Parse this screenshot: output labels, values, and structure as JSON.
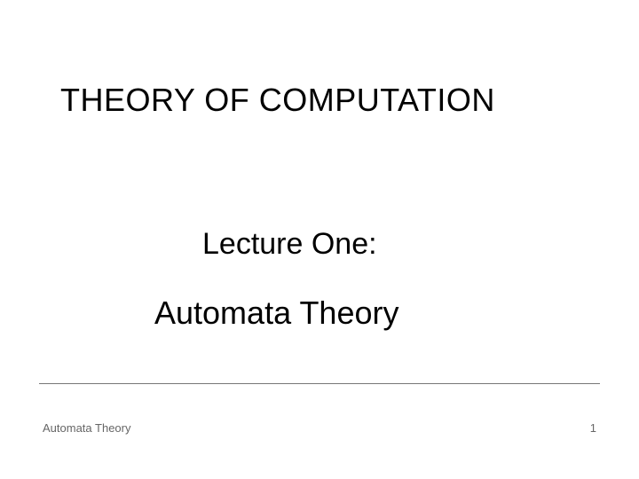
{
  "slide": {
    "title": "THEORY OF COMPUTATION",
    "subtitle_line1": "Lecture One:",
    "subtitle_line2": "Automata Theory",
    "footer_left": "Automata Theory",
    "page_number": "1",
    "background_color": "#ffffff",
    "text_color": "#000000",
    "footer_color": "#666666",
    "divider_color": "#777777",
    "title_fontsize": 36,
    "subtitle_fontsize": 34,
    "footer_fontsize": 13
  }
}
